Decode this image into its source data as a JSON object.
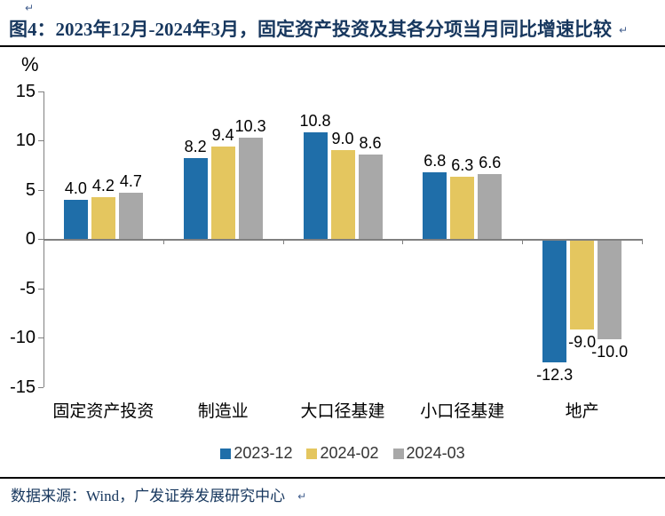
{
  "marks": {
    "return_mark": "↵"
  },
  "header": {
    "title": "图4：2023年12月-2024年3月，固定资产投资及其各分项当月同比增速比较"
  },
  "chart_data": {
    "type": "bar",
    "title": "图4：2023年12月-2024年3月，固定资产投资及其各分项当月同比增速比较",
    "unit_label": "%",
    "categories": [
      "固定资产投资",
      "制造业",
      "大口径基建",
      "小口径基建",
      "地产"
    ],
    "series": [
      {
        "name": "2023-12",
        "color": "#1F6EA9",
        "values": [
          4.0,
          8.2,
          10.8,
          6.8,
          -12.3
        ]
      },
      {
        "name": "2024-02",
        "color": "#E4C65F",
        "values": [
          4.2,
          9.4,
          9.0,
          6.3,
          -9.0
        ]
      },
      {
        "name": "2024-03",
        "color": "#A8A8A8",
        "values": [
          4.7,
          10.3,
          8.6,
          6.6,
          -10.0
        ]
      }
    ],
    "yticks": [
      15,
      10,
      5,
      0,
      -5,
      -10,
      -15
    ],
    "ylim": [
      -15,
      15
    ],
    "xlabel": "",
    "ylabel": "%",
    "grid": false,
    "legend_position": "bottom",
    "value_labels": true,
    "axis_color": "#808080",
    "label_color": "#000000"
  },
  "footer": {
    "text": "数据来源：Wind，广发证券发展研究中心"
  },
  "colors": {
    "title_navy": "#17375E",
    "divider": "#000000",
    "series_blue": "#1F6EA9",
    "series_gold": "#E4C65F",
    "series_gray": "#A8A8A8"
  }
}
